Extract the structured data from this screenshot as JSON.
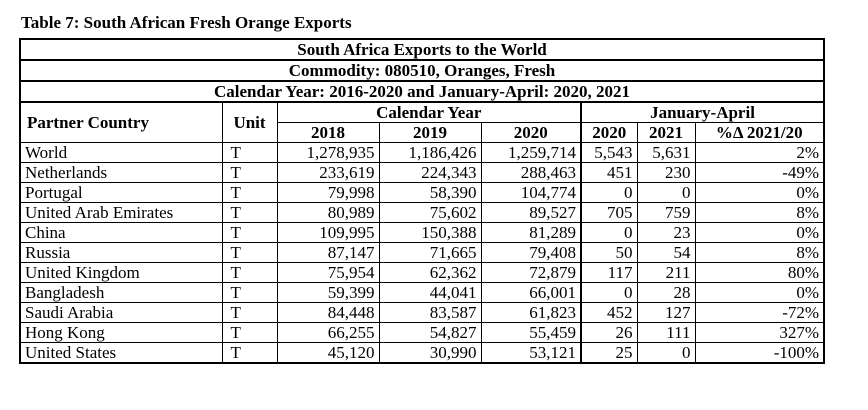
{
  "caption": "Table 7: South African Fresh Orange Exports",
  "titles": [
    "South Africa Exports to the World",
    "Commodity: 080510, Oranges, Fresh",
    "Calendar Year: 2016-2020 and January-April: 2020, 2021"
  ],
  "headers": {
    "partner_country": "Partner Country",
    "unit": "Unit",
    "calendar_year": "Calendar Year",
    "january_april": "January-April",
    "years": [
      "2018",
      "2019",
      "2020"
    ],
    "ja_years": [
      "2020",
      "2021"
    ],
    "pct_change": "%Δ 2021/20"
  },
  "rows": [
    {
      "country": "World",
      "unit": "T",
      "y2018": "1,278,935",
      "y2019": "1,186,426",
      "y2020": "1,259,714",
      "ja2020": "5,543",
      "ja2021": "5,631",
      "pct": "2%"
    },
    {
      "country": "Netherlands",
      "unit": "T",
      "y2018": "233,619",
      "y2019": "224,343",
      "y2020": "288,463",
      "ja2020": "451",
      "ja2021": "230",
      "pct": "-49%"
    },
    {
      "country": "Portugal",
      "unit": "T",
      "y2018": "79,998",
      "y2019": "58,390",
      "y2020": "104,774",
      "ja2020": "0",
      "ja2021": "0",
      "pct": "0%"
    },
    {
      "country": "United Arab Emirates",
      "unit": "T",
      "y2018": "80,989",
      "y2019": "75,602",
      "y2020": "89,527",
      "ja2020": "705",
      "ja2021": "759",
      "pct": "8%"
    },
    {
      "country": "China",
      "unit": "T",
      "y2018": "109,995",
      "y2019": "150,388",
      "y2020": "81,289",
      "ja2020": "0",
      "ja2021": "23",
      "pct": "0%"
    },
    {
      "country": "Russia",
      "unit": "T",
      "y2018": "87,147",
      "y2019": "71,665",
      "y2020": "79,408",
      "ja2020": "50",
      "ja2021": "54",
      "pct": "8%"
    },
    {
      "country": "United Kingdom",
      "unit": "T",
      "y2018": "75,954",
      "y2019": "62,362",
      "y2020": "72,879",
      "ja2020": "117",
      "ja2021": "211",
      "pct": "80%"
    },
    {
      "country": "Bangladesh",
      "unit": "T",
      "y2018": "59,399",
      "y2019": "44,041",
      "y2020": "66,001",
      "ja2020": "0",
      "ja2021": "28",
      "pct": "0%"
    },
    {
      "country": "Saudi Arabia",
      "unit": "T",
      "y2018": "84,448",
      "y2019": "83,587",
      "y2020": "61,823",
      "ja2020": "452",
      "ja2021": "127",
      "pct": "-72%"
    },
    {
      "country": "Hong Kong",
      "unit": "T",
      "y2018": "66,255",
      "y2019": "54,827",
      "y2020": "55,459",
      "ja2020": "26",
      "ja2021": "111",
      "pct": "327%"
    },
    {
      "country": "United States",
      "unit": "T",
      "y2018": "45,120",
      "y2019": "30,990",
      "y2020": "53,121",
      "ja2020": "25",
      "ja2021": "0",
      "pct": "-100%"
    }
  ]
}
